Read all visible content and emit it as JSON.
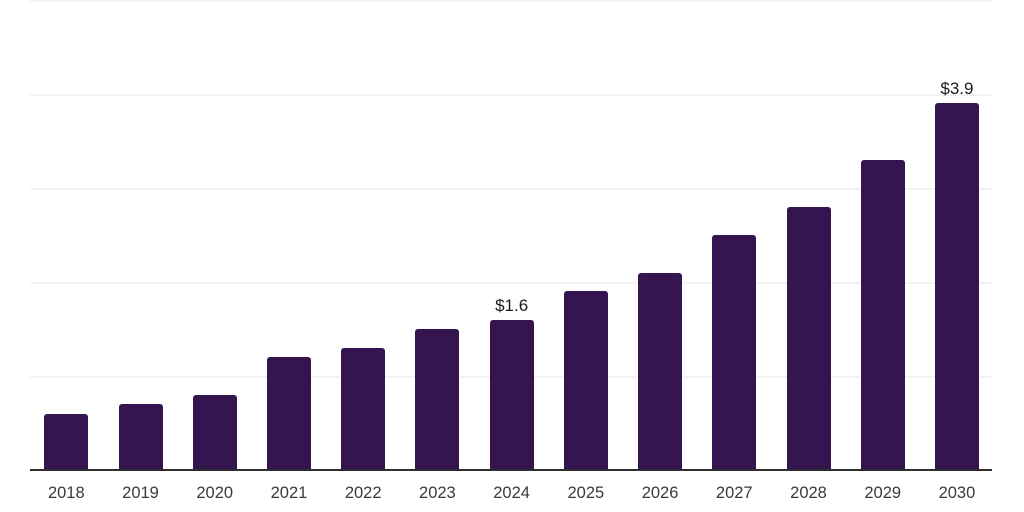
{
  "chart_data": {
    "type": "bar",
    "categories": [
      "2018",
      "2019",
      "2020",
      "2021",
      "2022",
      "2023",
      "2024",
      "2025",
      "2026",
      "2027",
      "2028",
      "2029",
      "2030"
    ],
    "values": [
      0.6,
      0.7,
      0.8,
      1.2,
      1.3,
      1.5,
      1.6,
      1.9,
      2.1,
      2.5,
      2.8,
      3.3,
      3.9
    ],
    "data_labels": [
      {
        "category": "2024",
        "text": "$1.6"
      },
      {
        "category": "2030",
        "text": "$3.9"
      }
    ],
    "title": "",
    "xlabel": "",
    "ylabel": "",
    "ylim": [
      0,
      5
    ],
    "gridline_step": 1,
    "grid": true,
    "legend": false,
    "y_tick_labels_visible": false,
    "colors": {
      "bar_fill": "#35154f",
      "axis_line": "#2e2e2e",
      "gridline": "#f2f2f2",
      "tick_label": "#3a3a3a",
      "data_label": "#1b1b1b",
      "background": "#ffffff"
    }
  }
}
